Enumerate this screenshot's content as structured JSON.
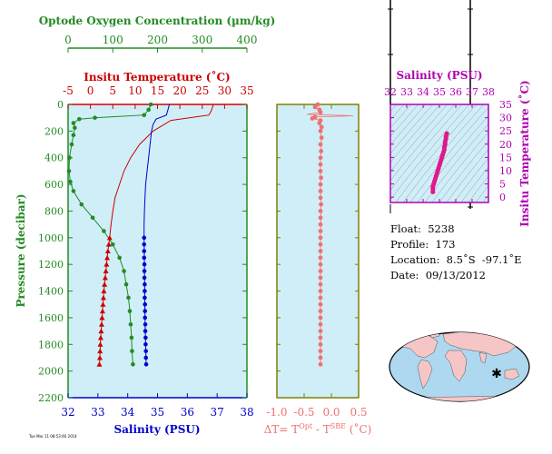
{
  "chart_data": [
    {
      "type": "line",
      "panel": "main-profile",
      "axes": {
        "oxygen": {
          "label": "Optode Oxygen Concentration (µm/kg)",
          "range": [
            0,
            400
          ],
          "ticks": [
            "0",
            "100",
            "200",
            "300",
            "400"
          ],
          "color": "#228b22"
        },
        "temperature": {
          "label": "Insitu Temperature (˚C)",
          "range": [
            -5,
            35
          ],
          "ticks": [
            "-5",
            "0",
            "5",
            "10",
            "15",
            "20",
            "25",
            "30",
            "35"
          ],
          "color": "#cc0000"
        },
        "salinity": {
          "label": "Salinity (PSU)",
          "range": [
            32,
            38
          ],
          "ticks": [
            "32",
            "33",
            "34",
            "35",
            "36",
            "37",
            "38"
          ],
          "color": "#0000cc"
        },
        "pressure": {
          "label": "Pressure (decibar)",
          "range": [
            0,
            2200
          ],
          "ticks": [
            "0",
            "200",
            "400",
            "600",
            "800",
            "1000",
            "1200",
            "1400",
            "1600",
            "1800",
            "2000",
            "2200"
          ],
          "color": "#228b22"
        }
      },
      "series": [
        {
          "quantity": "oxygen",
          "color": "#228b22",
          "line": [
            [
              185,
              0
            ],
            [
              180,
              40
            ],
            [
              170,
              80
            ],
            [
              60,
              100
            ],
            [
              25,
              110
            ],
            [
              12,
              140
            ],
            [
              15,
              175
            ],
            [
              12,
              230
            ],
            [
              8,
              300
            ],
            [
              3,
              400
            ],
            [
              2,
              500
            ],
            [
              5,
              580
            ],
            [
              12,
              650
            ],
            [
              30,
              750
            ],
            [
              55,
              850
            ],
            [
              80,
              950
            ],
            [
              100,
              1050
            ],
            [
              115,
              1150
            ],
            [
              125,
              1250
            ],
            [
              130,
              1350
            ],
            [
              135,
              1450
            ],
            [
              138,
              1550
            ],
            [
              140,
              1650
            ],
            [
              142,
              1750
            ],
            [
              143,
              1850
            ],
            [
              145,
              1950
            ]
          ],
          "points": [
            [
              185,
              0
            ],
            [
              180,
              40
            ],
            [
              170,
              80
            ],
            [
              60,
              100
            ],
            [
              25,
              110
            ],
            [
              12,
              140
            ],
            [
              15,
              175
            ],
            [
              12,
              230
            ],
            [
              8,
              300
            ],
            [
              3,
              400
            ],
            [
              2,
              500
            ],
            [
              5,
              580
            ],
            [
              12,
              650
            ],
            [
              30,
              750
            ],
            [
              55,
              850
            ],
            [
              80,
              950
            ],
            [
              100,
              1050
            ],
            [
              115,
              1150
            ],
            [
              125,
              1250
            ],
            [
              130,
              1350
            ],
            [
              135,
              1450
            ],
            [
              138,
              1550
            ],
            [
              140,
              1650
            ],
            [
              142,
              1750
            ],
            [
              143,
              1850
            ],
            [
              145,
              1950
            ]
          ]
        },
        {
          "quantity": "temperature",
          "color": "#cc0000",
          "line": [
            [
              27.5,
              0
            ],
            [
              27,
              50
            ],
            [
              26.5,
              80
            ],
            [
              18,
              120
            ],
            [
              14,
              200
            ],
            [
              11,
              300
            ],
            [
              9,
              400
            ],
            [
              7.5,
              500
            ],
            [
              6.5,
              600
            ],
            [
              5.5,
              700
            ],
            [
              5,
              800
            ],
            [
              4.6,
              900
            ],
            [
              4.3,
              1000
            ],
            [
              3.9,
              1100
            ],
            [
              3.6,
              1200
            ],
            [
              3.3,
              1300
            ],
            [
              3,
              1400
            ],
            [
              2.8,
              1500
            ],
            [
              2.6,
              1600
            ],
            [
              2.4,
              1700
            ],
            [
              2.2,
              1800
            ],
            [
              2.1,
              1900
            ],
            [
              2,
              1950
            ]
          ],
          "points": [
            [
              4.3,
              1000
            ],
            [
              4.1,
              1050
            ],
            [
              3.9,
              1100
            ],
            [
              3.75,
              1150
            ],
            [
              3.6,
              1200
            ],
            [
              3.45,
              1250
            ],
            [
              3.3,
              1300
            ],
            [
              3.15,
              1350
            ],
            [
              3,
              1400
            ],
            [
              2.9,
              1450
            ],
            [
              2.8,
              1500
            ],
            [
              2.7,
              1550
            ],
            [
              2.6,
              1600
            ],
            [
              2.5,
              1650
            ],
            [
              2.4,
              1700
            ],
            [
              2.3,
              1750
            ],
            [
              2.2,
              1800
            ],
            [
              2.15,
              1850
            ],
            [
              2.1,
              1900
            ],
            [
              2,
              1950
            ]
          ]
        },
        {
          "quantity": "salinity",
          "color": "#0000cc",
          "line": [
            [
              35.4,
              0
            ],
            [
              35.35,
              40
            ],
            [
              35.3,
              80
            ],
            [
              34.95,
              110
            ],
            [
              34.85,
              150
            ],
            [
              34.8,
              200
            ],
            [
              34.75,
              300
            ],
            [
              34.7,
              400
            ],
            [
              34.65,
              500
            ],
            [
              34.6,
              600
            ],
            [
              34.58,
              700
            ],
            [
              34.56,
              800
            ],
            [
              34.55,
              900
            ],
            [
              34.55,
              1000
            ],
            [
              34.56,
              1200
            ],
            [
              34.57,
              1400
            ],
            [
              34.58,
              1600
            ],
            [
              34.6,
              1800
            ],
            [
              34.62,
              1950
            ]
          ],
          "points": [
            [
              34.55,
              1000
            ],
            [
              34.55,
              1050
            ],
            [
              34.55,
              1100
            ],
            [
              34.55,
              1150
            ],
            [
              34.56,
              1200
            ],
            [
              34.56,
              1250
            ],
            [
              34.56,
              1300
            ],
            [
              34.57,
              1350
            ],
            [
              34.57,
              1400
            ],
            [
              34.57,
              1450
            ],
            [
              34.58,
              1500
            ],
            [
              34.58,
              1550
            ],
            [
              34.58,
              1600
            ],
            [
              34.59,
              1650
            ],
            [
              34.59,
              1700
            ],
            [
              34.6,
              1750
            ],
            [
              34.6,
              1800
            ],
            [
              34.61,
              1850
            ],
            [
              34.61,
              1900
            ],
            [
              34.62,
              1950
            ]
          ]
        }
      ]
    },
    {
      "type": "line",
      "panel": "delta-t",
      "xlabel": "ΔT= T",
      "xlabel_parts": {
        "a": "ΔT= T",
        "sup1": "Opt",
        "b": " - T",
        "sup2": "SBE",
        "c": " (˚C)"
      },
      "xrange": [
        -1,
        0.5
      ],
      "yrange": [
        0,
        2200
      ],
      "xticks": [
        "-1.0",
        "-0.5",
        "0.0",
        "0.5"
      ],
      "color": "#f07070",
      "line": [
        [
          -0.25,
          0
        ],
        [
          -0.3,
          20
        ],
        [
          -0.22,
          40
        ],
        [
          -0.2,
          60
        ],
        [
          -0.45,
          75
        ],
        [
          0.4,
          85
        ],
        [
          -0.3,
          95
        ],
        [
          -0.35,
          105
        ],
        [
          -0.2,
          120
        ],
        [
          -0.22,
          140
        ],
        [
          -0.18,
          170
        ],
        [
          -0.2,
          200
        ],
        [
          -0.18,
          300
        ],
        [
          -0.2,
          400
        ],
        [
          -0.2,
          600
        ],
        [
          -0.19,
          800
        ],
        [
          -0.2,
          1000
        ],
        [
          -0.2,
          1500
        ],
        [
          -0.2,
          1950
        ]
      ],
      "points": [
        [
          -0.25,
          0
        ],
        [
          -0.3,
          20
        ],
        [
          -0.22,
          40
        ],
        [
          -0.2,
          60
        ],
        [
          -0.3,
          95
        ],
        [
          -0.35,
          105
        ],
        [
          -0.2,
          120
        ],
        [
          -0.22,
          140
        ],
        [
          -0.18,
          170
        ],
        [
          -0.2,
          200
        ],
        [
          -0.18,
          250
        ],
        [
          -0.2,
          300
        ],
        [
          -0.19,
          350
        ],
        [
          -0.2,
          400
        ],
        [
          -0.2,
          450
        ],
        [
          -0.2,
          500
        ],
        [
          -0.19,
          550
        ],
        [
          -0.2,
          600
        ],
        [
          -0.2,
          650
        ],
        [
          -0.2,
          700
        ],
        [
          -0.19,
          750
        ],
        [
          -0.2,
          800
        ],
        [
          -0.2,
          850
        ],
        [
          -0.2,
          900
        ],
        [
          -0.2,
          950
        ],
        [
          -0.2,
          1000
        ],
        [
          -0.2,
          1050
        ],
        [
          -0.2,
          1100
        ],
        [
          -0.2,
          1150
        ],
        [
          -0.2,
          1200
        ],
        [
          -0.2,
          1250
        ],
        [
          -0.2,
          1300
        ],
        [
          -0.2,
          1350
        ],
        [
          -0.2,
          1400
        ],
        [
          -0.2,
          1450
        ],
        [
          -0.2,
          1500
        ],
        [
          -0.2,
          1550
        ],
        [
          -0.2,
          1600
        ],
        [
          -0.2,
          1650
        ],
        [
          -0.2,
          1700
        ],
        [
          -0.2,
          1750
        ],
        [
          -0.2,
          1800
        ],
        [
          -0.2,
          1850
        ],
        [
          -0.2,
          1900
        ],
        [
          -0.2,
          1950
        ]
      ]
    },
    {
      "type": "scatter",
      "panel": "ts-diagram",
      "xlabel": "Salinity (PSU)",
      "ylabel": "Insitu Temperature (˚C)",
      "xrange": [
        32,
        38
      ],
      "yrange": [
        -2,
        35
      ],
      "xticks": [
        "32",
        "33",
        "34",
        "35",
        "36",
        "37",
        "38"
      ],
      "yticks": [
        "0",
        "5",
        "10",
        "15",
        "20",
        "25",
        "30",
        "35"
      ],
      "color": "#e0188c",
      "points": [
        [
          34.6,
          2
        ],
        [
          34.6,
          3
        ],
        [
          34.6,
          4
        ],
        [
          34.65,
          5
        ],
        [
          34.7,
          6
        ],
        [
          34.75,
          7
        ],
        [
          34.8,
          8
        ],
        [
          34.85,
          9
        ],
        [
          34.9,
          10
        ],
        [
          34.95,
          11
        ],
        [
          35,
          12
        ],
        [
          35.05,
          13
        ],
        [
          35.1,
          14
        ],
        [
          35.15,
          15
        ],
        [
          35.2,
          16
        ],
        [
          35.25,
          17
        ],
        [
          35.3,
          18
        ],
        [
          35.3,
          19
        ],
        [
          35.35,
          20
        ],
        [
          35.35,
          21
        ],
        [
          35.4,
          22
        ],
        [
          35.4,
          23
        ],
        [
          35.45,
          24
        ]
      ]
    }
  ],
  "info": {
    "float": "Float:  5238",
    "profile": "Profile:  173",
    "location": "Location:  8.5˚S  -97.1˚E",
    "date": "Date:  09/13/2012"
  },
  "footer_text": "Tue Mar 11 08:53:46 2014",
  "colors": {
    "plot_bg": "#d0eef8",
    "map_bg": "#add8f0",
    "land": "#f6c6c6"
  }
}
